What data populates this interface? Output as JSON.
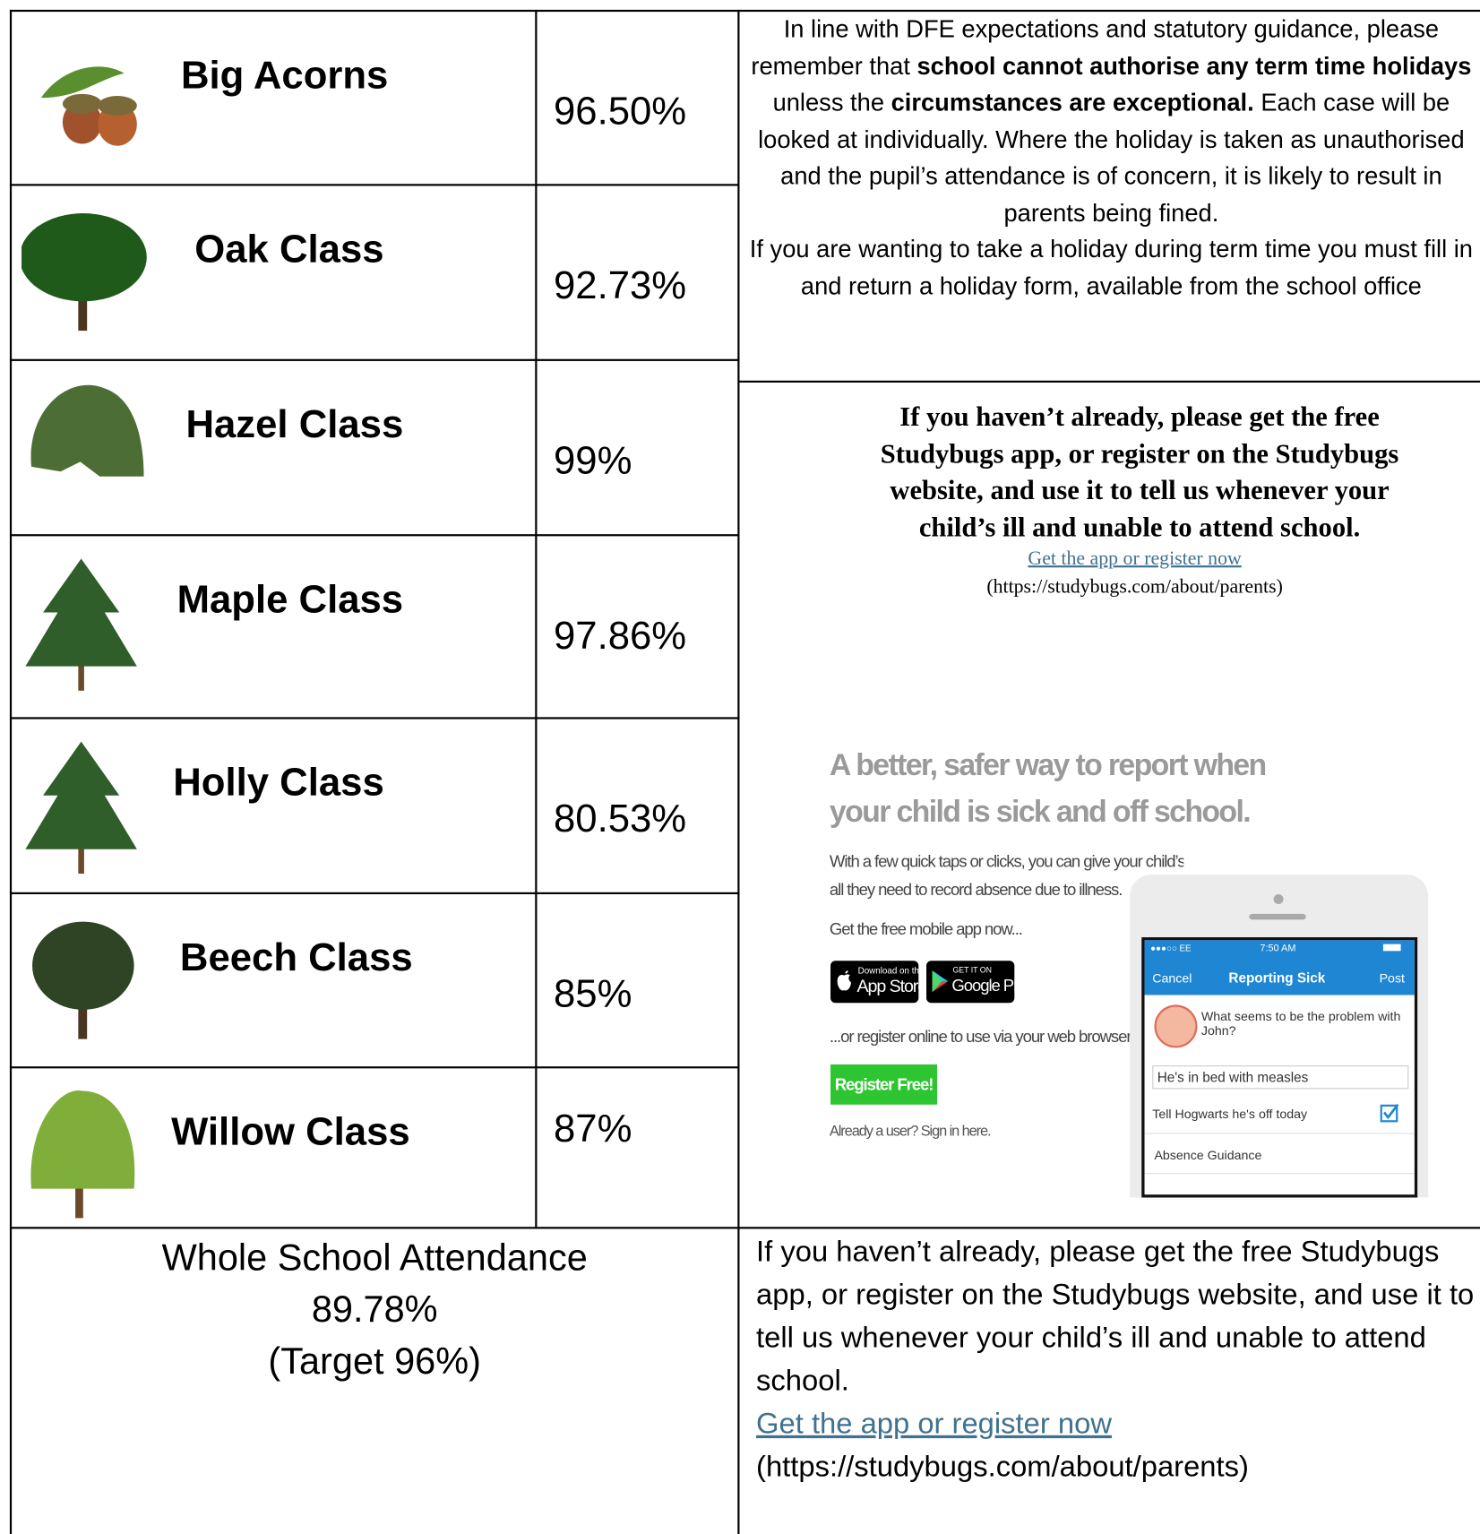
{
  "classes": [
    {
      "name": "Big Acorns",
      "attendance": "96.50%"
    },
    {
      "name": "Oak Class",
      "attendance": "92.73%"
    },
    {
      "name": "Hazel Class",
      "attendance": "99%"
    },
    {
      "name": "Maple Class",
      "attendance": "97.86%"
    },
    {
      "name": "Holly Class",
      "attendance": "80.53%"
    },
    {
      "name": "Beech Class",
      "attendance": "85%"
    },
    {
      "name": "Willow Class",
      "attendance": "87%"
    }
  ],
  "whole_school": {
    "title": "Whole School Attendance",
    "value": "89.78%",
    "target": "(Target 96%)"
  },
  "holiday_notice": {
    "paragraphs": [
      [
        {
          "text": "In line with DFE expectations and statutory guidance, please remember that ",
          "bold": false
        },
        {
          "text": "school cannot authorise any term time holidays",
          "bold": true
        },
        {
          "text": " unless the ",
          "bold": false
        },
        {
          "text": "circumstances are exceptional.",
          "bold": true
        },
        {
          "text": " Each case will be looked at individually. Where the holiday is taken as unauthorised and the pupil’s attendance is of concern, it is likely to result in parents being fined.",
          "bold": false
        }
      ],
      [
        {
          "text": "If you are wanting to take a holiday during term time you must fill in and return a holiday form, available from the school office",
          "bold": false
        }
      ]
    ]
  },
  "studybugs_box": {
    "heading": "If you haven’t already, please get the free Studybugs app, or register on the Studybugs website, and use it to tell us whenever your child’s ill and unable to attend school.",
    "link": "Get the app or register now",
    "url": "(https://studybugs.com/about/parents)"
  },
  "app_advert": {
    "heading_lines": [
      "A better, safer way to report when",
      "your child is sick and off school."
    ],
    "intro_lines": [
      "With a few quick taps or clicks, you can give your child’s school",
      "all they need to record absence due to illness."
    ],
    "get_app": "Get the free mobile app now...",
    "app_store": {
      "small": "Download on the",
      "big": "App Store"
    },
    "google_play": {
      "small": "GET IT ON",
      "big": "Google Play"
    },
    "register_prompt": "...or register online to use via your web browser:",
    "register_button": "Register Free!",
    "sign_in": "Already a user? Sign in here.",
    "phone": {
      "carrier": "●●●○○ EE",
      "time": "7:50 AM",
      "cancel": "Cancel",
      "title": "Reporting Sick",
      "post": "Post",
      "question": "What seems to be the problem with John?",
      "answer": "He's in bed with measles",
      "option1": "Tell Hogwarts he's off today",
      "option2": "Absence Guidance"
    }
  },
  "bottom_notice": {
    "text": "If you haven’t already, please get the free Studybugs app, or register on the Studybugs website, and use it to tell us whenever your child’s ill and unable to attend school.",
    "link": "Get the app or register now",
    "url": "(https://studybugs.com/about/parents)"
  }
}
